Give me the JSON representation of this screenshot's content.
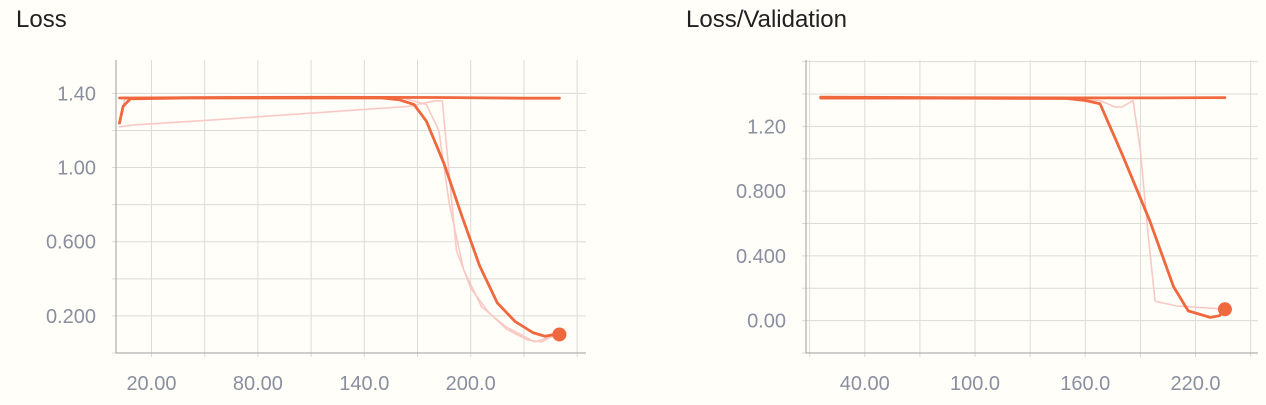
{
  "colors": {
    "smoothed": "#f0683e",
    "raw": "#f9c9c5",
    "grid": "#dcdcd6",
    "tick_text": "#8a8fa0"
  },
  "chart_data": [
    {
      "type": "line",
      "title": "Loss",
      "xlabel": "",
      "ylabel": "",
      "xlim": [
        0,
        265
      ],
      "ylim": [
        0,
        1.58
      ],
      "grid": true,
      "x_ticks": [
        "20.00",
        "80.00",
        "140.0",
        "200.0"
      ],
      "x_tick_values": [
        20,
        80,
        140,
        200
      ],
      "y_ticks": [
        "1.40",
        "1.00",
        "0.600",
        "0.200"
      ],
      "y_tick_values": [
        1.4,
        1.0,
        0.6,
        0.2
      ],
      "series": [
        {
          "style": "raw",
          "x": [
            2,
            10,
            60,
            120,
            165,
            180,
            184,
            188,
            192,
            200,
            210,
            220,
            232,
            240,
            246,
            250
          ],
          "y": [
            1.22,
            1.23,
            1.26,
            1.3,
            1.33,
            1.36,
            1.36,
            0.95,
            0.55,
            0.35,
            0.22,
            0.13,
            0.07,
            0.06,
            0.09,
            0.1
          ]
        },
        {
          "style": "raw",
          "x": [
            2,
            5,
            40,
            100,
            160,
            175,
            182,
            188,
            196,
            206,
            220,
            236,
            250
          ],
          "y": [
            1.26,
            1.37,
            1.38,
            1.38,
            1.38,
            1.34,
            1.2,
            0.8,
            0.45,
            0.25,
            0.14,
            0.06,
            0.1
          ]
        },
        {
          "style": "raw",
          "x": [
            2,
            60,
            120,
            180,
            240
          ],
          "y": [
            1.375,
            1.382,
            1.378,
            1.38,
            1.376
          ]
        },
        {
          "style": "smoothed",
          "x": [
            2,
            4,
            8,
            40,
            100,
            150,
            160,
            168,
            175,
            185,
            195,
            205,
            215,
            225,
            235,
            242,
            247,
            250
          ],
          "y": [
            1.24,
            1.33,
            1.37,
            1.375,
            1.375,
            1.375,
            1.365,
            1.34,
            1.25,
            1.02,
            0.74,
            0.47,
            0.27,
            0.17,
            0.11,
            0.09,
            0.1,
            0.1
          ]
        },
        {
          "style": "smoothed",
          "x": [
            2,
            60,
            120,
            180,
            230,
            250
          ],
          "y": [
            1.375,
            1.378,
            1.379,
            1.378,
            1.374,
            1.374
          ]
        }
      ],
      "end_marker": {
        "x": 250,
        "y": 0.1
      }
    },
    {
      "type": "line",
      "title": "Loss/Validation",
      "xlabel": "",
      "ylabel": "",
      "xlim": [
        8,
        254
      ],
      "ylim": [
        -0.2,
        1.61
      ],
      "grid": true,
      "x_ticks": [
        "40.00",
        "100.0",
        "160.0",
        "220.0"
      ],
      "x_tick_values": [
        40,
        100,
        160,
        220
      ],
      "y_ticks": [
        "1.20",
        "0.800",
        "0.400",
        "0.00"
      ],
      "y_tick_values": [
        1.2,
        0.8,
        0.4,
        0.0
      ],
      "series": [
        {
          "style": "raw",
          "x": [
            16,
            80,
            150,
            168,
            176,
            180,
            186,
            190,
            194,
            198,
            210,
            225,
            236
          ],
          "y": [
            1.37,
            1.37,
            1.37,
            1.36,
            1.32,
            1.32,
            1.36,
            1.05,
            0.55,
            0.12,
            0.09,
            0.08,
            0.07
          ]
        },
        {
          "style": "raw",
          "x": [
            16,
            60,
            120,
            180,
            236
          ],
          "y": [
            1.375,
            1.378,
            1.376,
            1.377,
            1.374
          ]
        },
        {
          "style": "smoothed",
          "x": [
            16,
            80,
            150,
            160,
            168,
            180,
            195,
            208,
            216,
            222,
            228,
            233,
            236
          ],
          "y": [
            1.375,
            1.375,
            1.372,
            1.36,
            1.34,
            1.03,
            0.62,
            0.21,
            0.06,
            0.04,
            0.02,
            0.03,
            0.07
          ]
        },
        {
          "style": "smoothed",
          "x": [
            16,
            80,
            150,
            200,
            236
          ],
          "y": [
            1.38,
            1.378,
            1.376,
            1.376,
            1.378
          ]
        }
      ],
      "end_marker": {
        "x": 236,
        "y": 0.07
      }
    }
  ]
}
